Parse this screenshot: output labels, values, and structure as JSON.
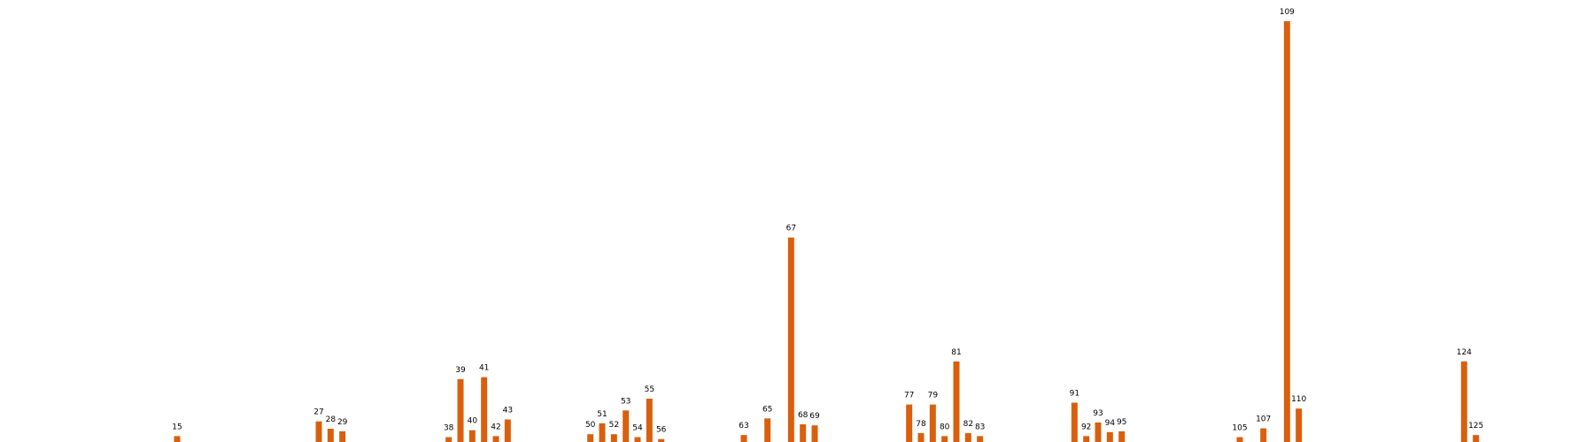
{
  "chart_data": {
    "type": "bar",
    "title": "",
    "xlabel": "",
    "ylabel": "",
    "grid": false,
    "axes_visible": false,
    "bar_color": "#d95f0e",
    "x_range": [
      0,
      135
    ],
    "y_range": [
      0,
      200
    ],
    "bars": [
      {
        "x": 15,
        "label": "15",
        "value": 2.8
      },
      {
        "x": 27,
        "label": "27",
        "value": 9.8
      },
      {
        "x": 28,
        "label": "28",
        "value": 6.3
      },
      {
        "x": 29,
        "label": "29",
        "value": 5.1
      },
      {
        "x": 38,
        "label": "38",
        "value": 2.3
      },
      {
        "x": 39,
        "label": "39",
        "value": 29.9
      },
      {
        "x": 40,
        "label": "40",
        "value": 5.6
      },
      {
        "x": 41,
        "label": "41",
        "value": 30.8
      },
      {
        "x": 42,
        "label": "42",
        "value": 2.8
      },
      {
        "x": 43,
        "label": "43",
        "value": 10.7
      },
      {
        "x": 50,
        "label": "50",
        "value": 3.7
      },
      {
        "x": 51,
        "label": "51",
        "value": 8.9
      },
      {
        "x": 52,
        "label": "52",
        "value": 3.7
      },
      {
        "x": 53,
        "label": "53",
        "value": 15.0
      },
      {
        "x": 54,
        "label": "54",
        "value": 2.3
      },
      {
        "x": 55,
        "label": "55",
        "value": 20.6
      },
      {
        "x": 56,
        "label": "56",
        "value": 1.4
      },
      {
        "x": 63,
        "label": "63",
        "value": 3.3
      },
      {
        "x": 65,
        "label": "65",
        "value": 11.2
      },
      {
        "x": 67,
        "label": "67",
        "value": 97.2
      },
      {
        "x": 68,
        "label": "68",
        "value": 8.4
      },
      {
        "x": 69,
        "label": "69",
        "value": 7.9
      },
      {
        "x": 77,
        "label": "77",
        "value": 17.8
      },
      {
        "x": 78,
        "label": "78",
        "value": 4.2
      },
      {
        "x": 79,
        "label": "79",
        "value": 17.8
      },
      {
        "x": 80,
        "label": "80",
        "value": 2.8
      },
      {
        "x": 81,
        "label": "81",
        "value": 38.3
      },
      {
        "x": 82,
        "label": "82",
        "value": 4.2
      },
      {
        "x": 83,
        "label": "83",
        "value": 2.8
      },
      {
        "x": 91,
        "label": "91",
        "value": 18.7
      },
      {
        "x": 92,
        "label": "92",
        "value": 2.8
      },
      {
        "x": 93,
        "label": "93",
        "value": 9.3
      },
      {
        "x": 94,
        "label": "94",
        "value": 4.7
      },
      {
        "x": 95,
        "label": "95",
        "value": 5.1
      },
      {
        "x": 105,
        "label": "105",
        "value": 2.3
      },
      {
        "x": 107,
        "label": "107",
        "value": 6.5
      },
      {
        "x": 109,
        "label": "109",
        "value": 200
      },
      {
        "x": 110,
        "label": "110",
        "value": 15.9
      },
      {
        "x": 124,
        "label": "124",
        "value": 38.3
      },
      {
        "x": 125,
        "label": "125",
        "value": 3.3
      }
    ]
  }
}
